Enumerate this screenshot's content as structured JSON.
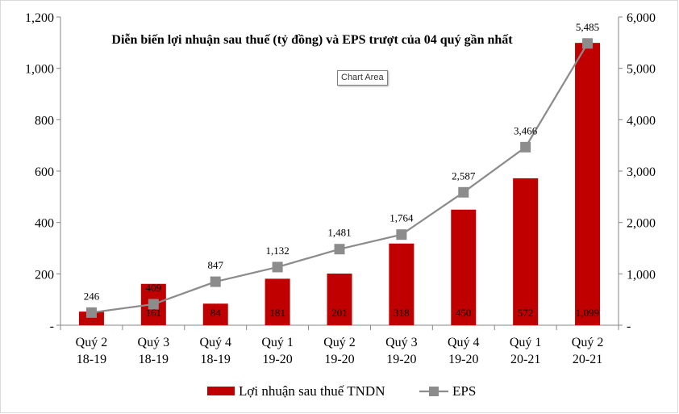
{
  "chart_data": {
    "type": "bar",
    "title": "Diễn biến lợi nhuận sau thuế (tỷ đồng) và EPS trượt của 04 quý gần nhất",
    "categories": [
      [
        "Quý 2",
        "18-19"
      ],
      [
        "Quý 3",
        "18-19"
      ],
      [
        "Quý 4",
        "18-19"
      ],
      [
        "Quý 1",
        "19-20"
      ],
      [
        "Quý 2",
        "19-20"
      ],
      [
        "Quý 3",
        "19-20"
      ],
      [
        "Quý 4",
        "19-20"
      ],
      [
        "Quý 1",
        "20-21"
      ],
      [
        "Quý 2",
        "20-21"
      ]
    ],
    "series": [
      {
        "name": "Lợi nhuận sau thuế TNDN",
        "type": "bar",
        "axis": "left",
        "color": "#c00000",
        "values": [
          53,
          161,
          84,
          181,
          201,
          318,
          450,
          572,
          1099
        ],
        "labels": [
          "53",
          "161",
          "84",
          "181",
          "201",
          "318",
          "450",
          "572",
          "1,099"
        ]
      },
      {
        "name": "EPS",
        "type": "line",
        "axis": "right",
        "color": "#8c8c8c",
        "values": [
          246,
          409,
          847,
          1132,
          1481,
          1764,
          2587,
          3466,
          5485
        ],
        "labels": [
          "246",
          "409",
          "847",
          "1,132",
          "1,481",
          "1,764",
          "2,587",
          "3,466",
          "5,485"
        ]
      }
    ],
    "y_left": {
      "min": 0,
      "max": 1200,
      "ticks": [
        "-",
        "200",
        "400",
        "600",
        "800",
        "1,000",
        "1,200"
      ]
    },
    "y_right": {
      "min": 0,
      "max": 6000,
      "ticks": [
        "-",
        "1,000",
        "2,000",
        "3,000",
        "4,000",
        "5,000",
        "6,000"
      ]
    },
    "legend_position": "bottom",
    "grid": false
  },
  "tooltip": {
    "text": "Chart Area"
  }
}
